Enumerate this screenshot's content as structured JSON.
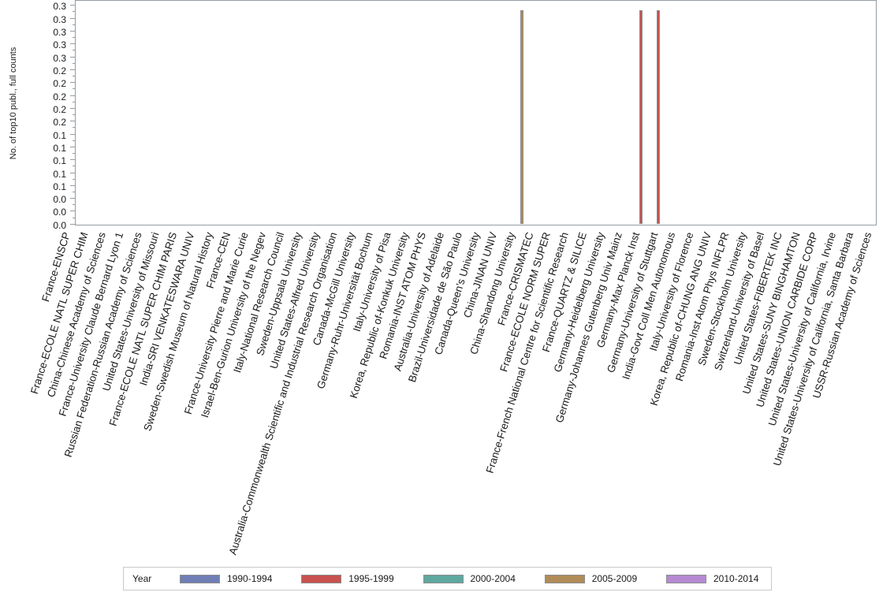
{
  "chart_data": {
    "type": "bar",
    "title": "",
    "ylabel": "No. of top10 publ., full counts",
    "xlabel": "",
    "ylim": [
      0,
      0.34
    ],
    "ytick_step": 0.02,
    "ytick_labels_bottom_to_top": [
      "0.0",
      "0.0",
      "0.0",
      "0.1",
      "0.1",
      "0.1",
      "0.1",
      "0.1",
      "0.2",
      "0.2",
      "0.2",
      "0.2",
      "0.2",
      "0.3",
      "0.3",
      "0.3",
      "0.3",
      "0.3"
    ],
    "grid": false,
    "legend_position": "bottom",
    "legend_title": "Year",
    "categories": [
      "France-ENSCP",
      "France-ECOLE NATL SUPER CHIM",
      "China-Chinese Academy of Sciences",
      "France-University Claude Bernard Lyon 1",
      "Russian Federation-Russian Academy of Sciences",
      "United States-University of Missouri",
      "France-ECOLE NATL SUPER CHIM PARIS",
      "India-SRI VENKATESWARA UNIV",
      "Sweden-Swedish Museum of Natural History",
      "France-CEN",
      "France-University Pierre and Marie Curie",
      "Israel-Ben-Gurion University of the Negev",
      "Italy-National Research Council",
      "Sweden-Uppsala University",
      "United States-Alfred University",
      "Australia-Commonwealth Scientific and Industrial Research Organisation",
      "Canada-McGill University",
      "Germany-Ruhr-Universität Bochum",
      "Italy-University of Pisa",
      "Korea, Republic of-Konkuk University",
      "Romania-INST ATOM PHYS",
      "Australia-University of Adelaide",
      "Brazil-Universidade de São Paulo",
      "Canada-Queen's University",
      "China-JINAN UNIV",
      "China-Shandong University",
      "France-CRISMATEC",
      "France-ECOLE NORM SUPER",
      "France-French National Centre for Scientific Research",
      "France-QUARTZ & SILICE",
      "Germany-Heidelberg University",
      "Germany-Johannes Gutenberg Univ Mainz",
      "Germany-Max Planck Inst",
      "Germany-University of Stuttgart",
      "India-Govt Coll Men Autonomous",
      "Italy-University of Florence",
      "Korea, Republic of-CHUNG ANG UNIV",
      "Romania-Inst Atom Phys INFLPR",
      "Sweden-Stockholm University",
      "Switzerland-University of Basel",
      "United States-FIBERTEK INC",
      "United States-SUNY BINGHAMTON",
      "United States-UNION CARBIDE CORP",
      "United States-University of California, Irvine",
      "United States-University of California, Santa Barbara",
      "USSR-Russian Academy of Sciences"
    ],
    "series": [
      {
        "name": "1990-1994",
        "color": "#6F7EB5",
        "values": [
          0,
          0,
          0,
          0,
          0,
          0,
          0,
          0,
          0,
          0,
          0,
          0,
          0,
          0,
          0,
          0,
          0,
          0,
          0,
          0,
          0,
          0,
          0,
          0,
          0,
          0,
          0,
          0,
          0,
          0,
          0,
          0,
          0,
          0,
          0,
          0,
          0,
          0,
          0,
          0,
          0,
          0,
          0,
          0,
          0,
          0
        ]
      },
      {
        "name": "1995-1999",
        "color": "#C9514E",
        "values": [
          0,
          0,
          0,
          0,
          0,
          0,
          0,
          0,
          0,
          0,
          0,
          0,
          0,
          0,
          0,
          0,
          0,
          0,
          0,
          0,
          0,
          0,
          0,
          0,
          0,
          0,
          0,
          0,
          0,
          0,
          0,
          0,
          0.333,
          0.333,
          0,
          0,
          0,
          0,
          0,
          0,
          0,
          0,
          0,
          0,
          0,
          0
        ]
      },
      {
        "name": "2000-2004",
        "color": "#5FA8A0",
        "values": [
          0,
          0,
          0,
          0,
          0,
          0,
          0,
          0,
          0,
          0,
          0,
          0,
          0,
          0,
          0,
          0,
          0,
          0,
          0,
          0,
          0,
          0,
          0,
          0,
          0,
          0,
          0,
          0,
          0,
          0,
          0,
          0,
          0,
          0,
          0,
          0,
          0,
          0,
          0,
          0,
          0,
          0,
          0,
          0,
          0,
          0
        ]
      },
      {
        "name": "2005-2009",
        "color": "#B08C58",
        "values": [
          0,
          0,
          0,
          0,
          0,
          0,
          0,
          0,
          0,
          0,
          0,
          0,
          0,
          0,
          0,
          0,
          0,
          0,
          0,
          0,
          0,
          0,
          0,
          0,
          0,
          0.333,
          0,
          0,
          0,
          0,
          0,
          0,
          0,
          0,
          0,
          0,
          0,
          0,
          0,
          0,
          0,
          0,
          0,
          0,
          0,
          0
        ]
      },
      {
        "name": "2010-2014",
        "color": "#B68AD2",
        "values": [
          0,
          0,
          0,
          0,
          0,
          0,
          0,
          0,
          0,
          0,
          0,
          0,
          0,
          0,
          0,
          0,
          0,
          0,
          0,
          0,
          0,
          0,
          0,
          0,
          0,
          0,
          0,
          0,
          0,
          0,
          0,
          0,
          0,
          0,
          0,
          0,
          0,
          0,
          0,
          0,
          0,
          0,
          0,
          0,
          0,
          0
        ]
      }
    ]
  },
  "legend": {
    "title": "Year",
    "entries": [
      {
        "label": "1990-1994",
        "color": "#6F7EB5"
      },
      {
        "label": "1995-1999",
        "color": "#C9514E"
      },
      {
        "label": "2000-2004",
        "color": "#5FA8A0"
      },
      {
        "label": "2005-2009",
        "color": "#B08C58"
      },
      {
        "label": "2010-2014",
        "color": "#B68AD2"
      }
    ]
  },
  "colors": {
    "axis_line": "#949CA3",
    "bar_outline": "#8C8C8C",
    "legend_border": "#C9C9C9",
    "text": "#1A1A1A",
    "background": "#FFFFFF"
  }
}
